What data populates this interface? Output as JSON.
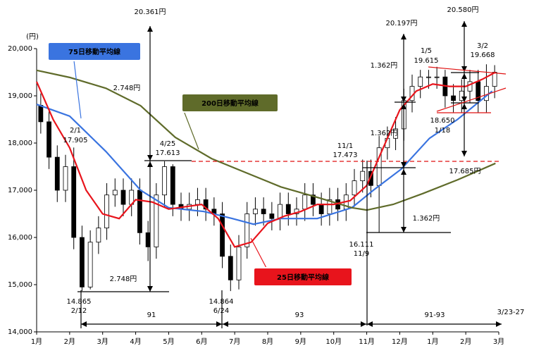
{
  "chart_data": {
    "type": "candlestick",
    "y_unit": "(円)",
    "xlim": [
      0,
      14
    ],
    "xticks": [
      {
        "value": 0,
        "label": "1月"
      },
      {
        "value": 1,
        "label": "2月"
      },
      {
        "value": 2,
        "label": "3月"
      },
      {
        "value": 3,
        "label": "4月"
      },
      {
        "value": 4,
        "label": "5月"
      },
      {
        "value": 5,
        "label": "6月"
      },
      {
        "value": 6,
        "label": "7月"
      },
      {
        "value": 7,
        "label": "8月"
      },
      {
        "value": 8,
        "label": "9月"
      },
      {
        "value": 9,
        "label": "10月"
      },
      {
        "value": 10,
        "label": "11月"
      },
      {
        "value": 11,
        "label": "12月"
      },
      {
        "value": 12,
        "label": "1月"
      },
      {
        "value": 13,
        "label": "2月"
      },
      {
        "value": 14,
        "label": "3月"
      }
    ],
    "ylim": [
      14000,
      20000
    ],
    "yticks": [
      {
        "value": 14000,
        "label": "14,000"
      },
      {
        "value": 15000,
        "label": "15,000"
      },
      {
        "value": 16000,
        "label": "16,000"
      },
      {
        "value": 17000,
        "label": "17,000"
      },
      {
        "value": 18000,
        "label": "18,000"
      },
      {
        "value": 19000,
        "label": "19,000"
      },
      {
        "value": 20000,
        "label": "20,000"
      }
    ],
    "candles": {
      "up_color": "#ffffff",
      "down_color": "#000000",
      "x": [
        0.125,
        0.375,
        0.625,
        0.875,
        1.125,
        1.375,
        1.625,
        1.875,
        2.125,
        2.375,
        2.625,
        2.875,
        3.125,
        3.375,
        3.625,
        3.875,
        4.125,
        4.375,
        4.625,
        4.875,
        5.125,
        5.375,
        5.625,
        5.875,
        6.125,
        6.375,
        6.625,
        6.875,
        7.125,
        7.375,
        7.625,
        7.875,
        8.125,
        8.375,
        8.625,
        8.875,
        9.125,
        9.375,
        9.625,
        9.875,
        10.125,
        10.375,
        10.625,
        10.875,
        11.125,
        11.375,
        11.625,
        11.875,
        12.125,
        12.375,
        12.625,
        12.875,
        13.125,
        13.375,
        13.625,
        13.875
      ],
      "open": [
        18800,
        18450,
        17700,
        17000,
        17500,
        16000,
        14950,
        15900,
        16200,
        16900,
        17000,
        16700,
        17000,
        16100,
        15800,
        16900,
        17500,
        16700,
        16600,
        16700,
        16800,
        16600,
        16500,
        15600,
        15100,
        15800,
        16500,
        16600,
        16500,
        16400,
        16700,
        16500,
        16600,
        16900,
        16700,
        16500,
        16800,
        16600,
        16900,
        17200,
        17400,
        17100,
        17900,
        18100,
        18300,
        18900,
        19200,
        19400,
        19400,
        19400,
        19000,
        18900,
        19100,
        19300,
        18900,
        19200
      ],
      "high": [
        19050,
        18700,
        17950,
        17750,
        17905,
        16250,
        16150,
        16450,
        17150,
        17250,
        17250,
        17250,
        17250,
        16350,
        17150,
        17613,
        17550,
        16950,
        16950,
        17050,
        17050,
        16850,
        16750,
        15850,
        16050,
        16750,
        16850,
        16850,
        16750,
        16950,
        16950,
        16850,
        17150,
        17150,
        16950,
        17050,
        17050,
        17150,
        17450,
        17650,
        17650,
        18150,
        18350,
        18550,
        19150,
        19450,
        19550,
        19550,
        19615,
        19550,
        19250,
        19350,
        19550,
        19550,
        19668,
        19650
      ],
      "low": [
        18200,
        17450,
        16750,
        16750,
        15750,
        14865,
        14900,
        15650,
        15950,
        16650,
        16450,
        16450,
        15850,
        15500,
        15550,
        16650,
        16450,
        16350,
        16350,
        16450,
        16350,
        16250,
        15350,
        14864,
        14900,
        15550,
        16250,
        16250,
        16150,
        16150,
        16250,
        16250,
        16350,
        16450,
        16250,
        16250,
        16350,
        16350,
        16650,
        16950,
        16850,
        16111,
        17650,
        17850,
        18050,
        18650,
        18950,
        19150,
        19150,
        18750,
        18650,
        18650,
        18850,
        18650,
        18650,
        18950
      ],
      "close": [
        18450,
        17700,
        17000,
        17500,
        16000,
        14950,
        15900,
        16200,
        16900,
        17000,
        16700,
        17000,
        16100,
        15800,
        16900,
        17500,
        16700,
        16600,
        16700,
        16800,
        16600,
        16500,
        15600,
        15100,
        15800,
        16500,
        16600,
        16500,
        16400,
        16700,
        16500,
        16600,
        16900,
        16700,
        16500,
        16800,
        16600,
        16900,
        17200,
        17400,
        17100,
        17900,
        18100,
        18300,
        18900,
        19200,
        19400,
        19400,
        19400,
        19000,
        18900,
        19100,
        19300,
        18900,
        19200,
        19500
      ]
    },
    "series": [
      {
        "name": "75日移動平均線",
        "color": "#3a74e0",
        "x": [
          0,
          1,
          2.1,
          3.15,
          4,
          5.07,
          5.93,
          6.57,
          7.4,
          8.5,
          9.55,
          10.2,
          11.05,
          11.9,
          12.75,
          13.8
        ],
        "values": [
          18820,
          18570,
          17820,
          17000,
          16630,
          16550,
          16400,
          16280,
          16400,
          16400,
          16630,
          17000,
          17450,
          18100,
          18500,
          19100
        ]
      },
      {
        "name": "200日移動平均線",
        "color": "#5f6b2a",
        "x": [
          0,
          1,
          2.1,
          3.15,
          4.2,
          5.3,
          6.35,
          7.4,
          8.5,
          9.55,
          10,
          10.8,
          11.7,
          12.75,
          13.9
        ],
        "values": [
          19540,
          19390,
          19160,
          18790,
          18120,
          17670,
          17370,
          17070,
          16850,
          16630,
          16580,
          16700,
          16930,
          17220,
          17570
        ]
      },
      {
        "name": "25日移動平均線",
        "color": "#e8141c",
        "x": [
          0,
          0.5,
          1,
          1.5,
          2,
          2.5,
          3,
          3.5,
          4,
          4.5,
          5,
          5.5,
          6,
          6.5,
          7,
          7.5,
          8,
          8.5,
          9,
          9.5,
          10,
          10.5,
          11,
          11.5,
          12,
          12.5,
          13,
          13.5,
          13.9
        ],
        "values": [
          19300,
          18500,
          17900,
          17000,
          16500,
          16400,
          16800,
          16750,
          16600,
          16650,
          16700,
          16400,
          15800,
          15900,
          16300,
          16450,
          16550,
          16700,
          16700,
          16780,
          17100,
          17900,
          18700,
          19100,
          19250,
          19200,
          19200,
          19350,
          19500
        ]
      }
    ],
    "annotations": [
      "20.361円",
      "2.748円",
      "2.748円",
      "2/1",
      "17.905",
      "4/25",
      "17.613",
      "14.865",
      "2/12",
      "14.864",
      "6/24",
      "91",
      "93",
      "91-93",
      "3/23-27",
      "11/1",
      "17.473",
      "16.111",
      "11/9",
      "20.197円",
      "1.362円",
      "1.362円",
      "1.362円",
      "1/5",
      "19.615",
      "3/2",
      "19.668",
      "18.650",
      "1/18",
      "20.580円",
      "17.685円"
    ]
  }
}
